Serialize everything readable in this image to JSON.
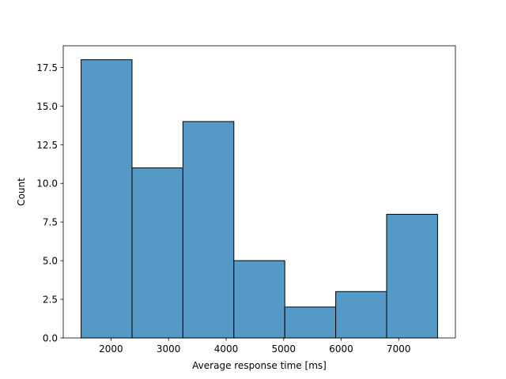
{
  "chart_data": {
    "type": "bar",
    "subtype": "histogram",
    "title": "",
    "xlabel": "Average response time [ms]",
    "ylabel": "Count",
    "bins": [
      {
        "start": 1480,
        "end": 2365,
        "count": 18
      },
      {
        "start": 2365,
        "end": 3250,
        "count": 11
      },
      {
        "start": 3250,
        "end": 4135,
        "count": 14
      },
      {
        "start": 4135,
        "end": 5020,
        "count": 5
      },
      {
        "start": 5020,
        "end": 5905,
        "count": 2
      },
      {
        "start": 5905,
        "end": 6790,
        "count": 3
      },
      {
        "start": 6790,
        "end": 7675,
        "count": 8
      }
    ],
    "xlim": [
      1170,
      7985
    ],
    "ylim": [
      0,
      18.9
    ],
    "xticks": [
      2000,
      3000,
      4000,
      5000,
      6000,
      7000
    ],
    "xtick_labels": [
      "2000",
      "3000",
      "4000",
      "5000",
      "6000",
      "7000"
    ],
    "yticks": [
      0,
      2.5,
      5,
      7.5,
      10,
      12.5,
      15,
      17.5
    ],
    "ytick_labels": [
      "0.0",
      "2.5",
      "5.0",
      "7.5",
      "10.0",
      "12.5",
      "15.0",
      "17.5"
    ],
    "grid": false,
    "bar_color": "#5599c7",
    "edge_color": "#000000"
  }
}
